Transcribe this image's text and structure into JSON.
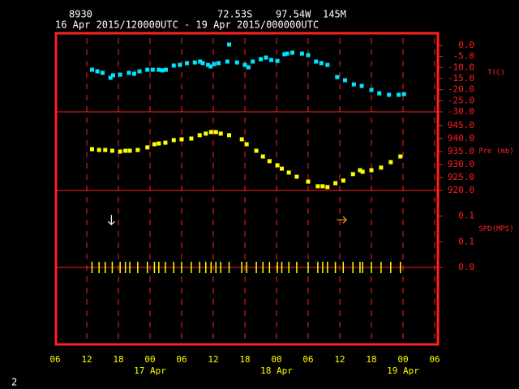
{
  "station": "8930",
  "latitude": "72.53S",
  "longitude": "97.54W",
  "elevation": "145M",
  "period": "16 Apr 2015/120000UTC - 19 Apr 2015/000000UTC",
  "page_number": "2",
  "x_axis": {
    "xlim": [
      "2015-04-16T06:00",
      "2015-04-19T06:00"
    ],
    "xticks": [
      {
        "value": "2015-04-16T06:00",
        "label": "06"
      },
      {
        "value": "2015-04-16T12:00",
        "label": "12"
      },
      {
        "value": "2015-04-16T18:00",
        "label": "18"
      },
      {
        "value": "2015-04-17T00:00",
        "label": "00"
      },
      {
        "value": "2015-04-17T06:00",
        "label": "06"
      },
      {
        "value": "2015-04-17T12:00",
        "label": "12"
      },
      {
        "value": "2015-04-17T18:00",
        "label": "18"
      },
      {
        "value": "2015-04-18T00:00",
        "label": "00"
      },
      {
        "value": "2015-04-18T06:00",
        "label": "06"
      },
      {
        "value": "2015-04-18T12:00",
        "label": "12"
      },
      {
        "value": "2015-04-18T18:00",
        "label": "18"
      },
      {
        "value": "2015-04-19T00:00",
        "label": "00"
      },
      {
        "value": "2015-04-19T06:00",
        "label": "06"
      }
    ],
    "day_labels": [
      {
        "value": "2015-04-17T00:00",
        "label": "17 Apr"
      },
      {
        "value": "2015-04-18T00:00",
        "label": "18 Apr"
      },
      {
        "value": "2015-04-19T00:00",
        "label": "19 Apr"
      }
    ]
  },
  "chart_data": [
    {
      "type": "scatter",
      "ylabel": "T(C)",
      "ylim": [
        -30,
        5.5
      ],
      "yticks": [
        {
          "value": 0,
          "label": "0.0"
        },
        {
          "value": -5,
          "label": "-5.0"
        },
        {
          "value": -10,
          "label": "-10.0"
        },
        {
          "value": -15,
          "label": "-15.0"
        },
        {
          "value": -20,
          "label": "-20.0"
        },
        {
          "value": -25,
          "label": "-25.0"
        },
        {
          "value": -30,
          "label": "-30.0"
        }
      ],
      "color": "#00e5ff",
      "x": [
        "2015-04-16T13:00",
        "2015-04-16T14:00",
        "2015-04-16T15:00",
        "2015-04-16T16:30",
        "2015-04-16T17:00",
        "2015-04-16T18:20",
        "2015-04-16T20:00",
        "2015-04-16T21:00",
        "2015-04-16T22:00",
        "2015-04-16T23:30",
        "2015-04-17T00:30",
        "2015-04-17T01:40",
        "2015-04-17T02:20",
        "2015-04-17T03:00",
        "2015-04-17T04:30",
        "2015-04-17T05:40",
        "2015-04-17T07:00",
        "2015-04-17T08:30",
        "2015-04-17T09:30",
        "2015-04-17T10:00",
        "2015-04-17T11:00",
        "2015-04-17T11:30",
        "2015-04-17T12:10",
        "2015-04-17T13:00",
        "2015-04-17T14:40",
        "2015-04-17T15:00",
        "2015-04-17T16:30",
        "2015-04-17T18:00",
        "2015-04-17T18:40",
        "2015-04-17T19:30",
        "2015-04-17T21:00",
        "2015-04-17T22:00",
        "2015-04-17T23:00",
        "2015-04-18T00:10",
        "2015-04-18T01:30",
        "2015-04-18T02:00",
        "2015-04-18T03:00",
        "2015-04-18T04:50",
        "2015-04-18T06:00",
        "2015-04-18T07:30",
        "2015-04-18T08:30",
        "2015-04-18T09:40",
        "2015-04-18T11:30",
        "2015-04-18T13:00",
        "2015-04-18T14:40",
        "2015-04-18T16:10",
        "2015-04-18T18:00",
        "2015-04-18T19:30",
        "2015-04-18T21:20",
        "2015-04-18T23:10",
        "2015-04-19T00:10"
      ],
      "values": [
        -11.0,
        -11.7,
        -12.4,
        -14.6,
        -13.5,
        -13.2,
        -12.4,
        -12.8,
        -11.7,
        -11.0,
        -11.0,
        -11.0,
        -11.3,
        -11.0,
        -9.1,
        -8.8,
        -8.0,
        -7.7,
        -7.3,
        -8.0,
        -8.8,
        -9.5,
        -8.4,
        -8.0,
        -7.3,
        0.4,
        -7.7,
        -8.8,
        -9.9,
        -7.3,
        -6.2,
        -5.5,
        -6.6,
        -7.0,
        -4.0,
        -3.7,
        -3.3,
        -3.7,
        -4.4,
        -7.3,
        -8.0,
        -8.8,
        -14.3,
        -15.7,
        -17.6,
        -18.3,
        -20.1,
        -21.6,
        -22.3,
        -22.3,
        -22.0
      ]
    },
    {
      "type": "scatter",
      "ylabel": "Pre (mb)",
      "ylim": [
        920,
        950.3
      ],
      "yticks": [
        {
          "value": 945,
          "label": "945.0"
        },
        {
          "value": 940,
          "label": "940.0"
        },
        {
          "value": 935,
          "label": "935.0"
        },
        {
          "value": 930,
          "label": "930.0"
        },
        {
          "value": 925,
          "label": "925.0"
        },
        {
          "value": 920,
          "label": "920.0"
        }
      ],
      "color": "#ffff00",
      "x": [
        "2015-04-16T13:00",
        "2015-04-16T14:20",
        "2015-04-16T15:30",
        "2015-04-16T16:50",
        "2015-04-16T18:20",
        "2015-04-16T19:20",
        "2015-04-16T20:10",
        "2015-04-16T21:40",
        "2015-04-16T23:30",
        "2015-04-17T00:50",
        "2015-04-17T01:40",
        "2015-04-17T02:55",
        "2015-04-17T04:30",
        "2015-04-17T06:00",
        "2015-04-17T07:50",
        "2015-04-17T09:25",
        "2015-04-17T10:35",
        "2015-04-17T11:35",
        "2015-04-17T12:30",
        "2015-04-17T13:25",
        "2015-04-17T15:00",
        "2015-04-17T17:25",
        "2015-04-17T18:20",
        "2015-04-17T20:10",
        "2015-04-17T21:25",
        "2015-04-17T22:40",
        "2015-04-18T00:10",
        "2015-04-18T01:00",
        "2015-04-18T02:20",
        "2015-04-18T03:50",
        "2015-04-18T06:00",
        "2015-04-18T07:50",
        "2015-04-18T08:45",
        "2015-04-18T09:40",
        "2015-04-18T11:10",
        "2015-04-18T12:40",
        "2015-04-18T14:30",
        "2015-04-18T15:50",
        "2015-04-18T16:20",
        "2015-04-18T18:00",
        "2015-04-18T19:50",
        "2015-04-18T21:40",
        "2015-04-18T23:30"
      ],
      "values": [
        935.9,
        935.6,
        935.6,
        935.3,
        935.0,
        935.3,
        935.3,
        935.6,
        936.6,
        937.8,
        938.1,
        938.4,
        939.4,
        939.7,
        940.0,
        941.3,
        941.9,
        942.5,
        942.5,
        941.9,
        941.3,
        939.7,
        937.8,
        935.3,
        933.1,
        931.3,
        929.7,
        928.4,
        926.9,
        925.3,
        923.4,
        921.6,
        921.6,
        921.3,
        922.8,
        923.8,
        926.3,
        927.8,
        927.2,
        927.8,
        928.8,
        930.9,
        933.1
      ]
    },
    {
      "type": "wind",
      "ylabel": "SPD(MPS)",
      "ylim": [
        -0.21,
        0.21
      ],
      "yticks": [
        {
          "value": 0.14,
          "label": "0.1"
        },
        {
          "value": 0.07,
          "label": "0.1"
        },
        {
          "value": 0,
          "label": "0.0"
        }
      ],
      "color": "#ffff00",
      "x": [
        "2015-04-16T13:00",
        "2015-04-16T14:20",
        "2015-04-16T15:30",
        "2015-04-16T16:50",
        "2015-04-16T18:20",
        "2015-04-16T19:20",
        "2015-04-16T20:10",
        "2015-04-16T21:40",
        "2015-04-16T23:30",
        "2015-04-17T00:50",
        "2015-04-17T01:40",
        "2015-04-17T02:55",
        "2015-04-17T04:30",
        "2015-04-17T06:00",
        "2015-04-17T07:50",
        "2015-04-17T09:25",
        "2015-04-17T10:35",
        "2015-04-17T11:35",
        "2015-04-17T12:30",
        "2015-04-17T13:25",
        "2015-04-17T15:00",
        "2015-04-17T17:25",
        "2015-04-17T18:20",
        "2015-04-17T20:10",
        "2015-04-17T21:25",
        "2015-04-17T22:40",
        "2015-04-18T00:10",
        "2015-04-18T01:00",
        "2015-04-18T02:20",
        "2015-04-18T03:50",
        "2015-04-18T06:00",
        "2015-04-18T07:50",
        "2015-04-18T08:45",
        "2015-04-18T09:40",
        "2015-04-18T11:10",
        "2015-04-18T12:40",
        "2015-04-18T14:30",
        "2015-04-18T15:50",
        "2015-04-18T16:20",
        "2015-04-18T18:00",
        "2015-04-18T19:50",
        "2015-04-18T21:40",
        "2015-04-18T23:30"
      ],
      "values": [
        0,
        0,
        0,
        0,
        0,
        0,
        0,
        0,
        0,
        0,
        0,
        0,
        0,
        0,
        0,
        0,
        0,
        0,
        0,
        0,
        0,
        0,
        0,
        0,
        0,
        0,
        0,
        0,
        0,
        0,
        0,
        0,
        0,
        0,
        0,
        0,
        0,
        0,
        0,
        0,
        0,
        0,
        0
      ],
      "vectors": {
        "x": [
          "2015-04-16T16:40",
          "2015-04-18T12:20"
        ],
        "values": [
          0.13,
          0.13
        ],
        "directions": [
          0,
          270
        ],
        "colors": [
          "#ffffff",
          "#ffa500"
        ]
      }
    }
  ]
}
